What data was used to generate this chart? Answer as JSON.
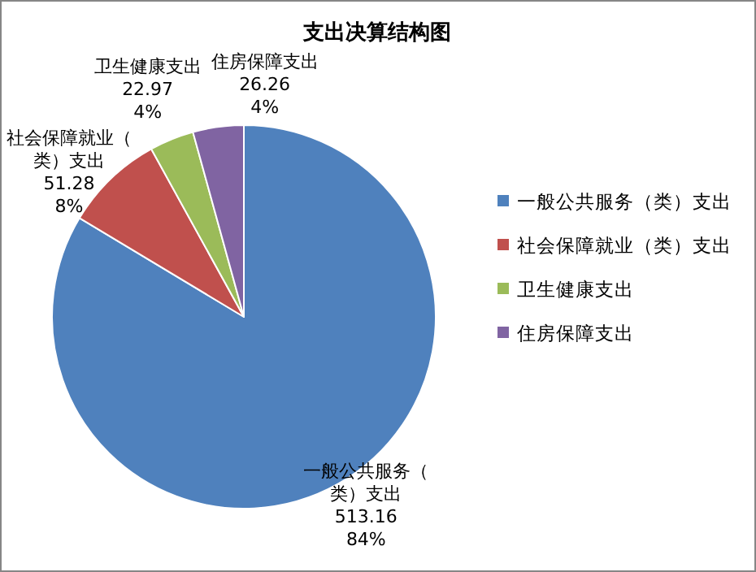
{
  "chart_data": {
    "type": "pie",
    "title": "支出决算结构图",
    "categories": [
      "一般公共服务（类）支出",
      "社会保障就业（类）支出",
      "卫生健康支出",
      "住房保障支出"
    ],
    "values": [
      513.16,
      51.28,
      22.97,
      26.26
    ],
    "value_labels": [
      "513.16\n84%",
      "51.28\n8%",
      "22.97\n4%",
      "26.26\n4%"
    ],
    "colors": [
      "#4f81bd",
      "#c0504d",
      "#9bbb59",
      "#8064a2"
    ],
    "legend": "right"
  }
}
